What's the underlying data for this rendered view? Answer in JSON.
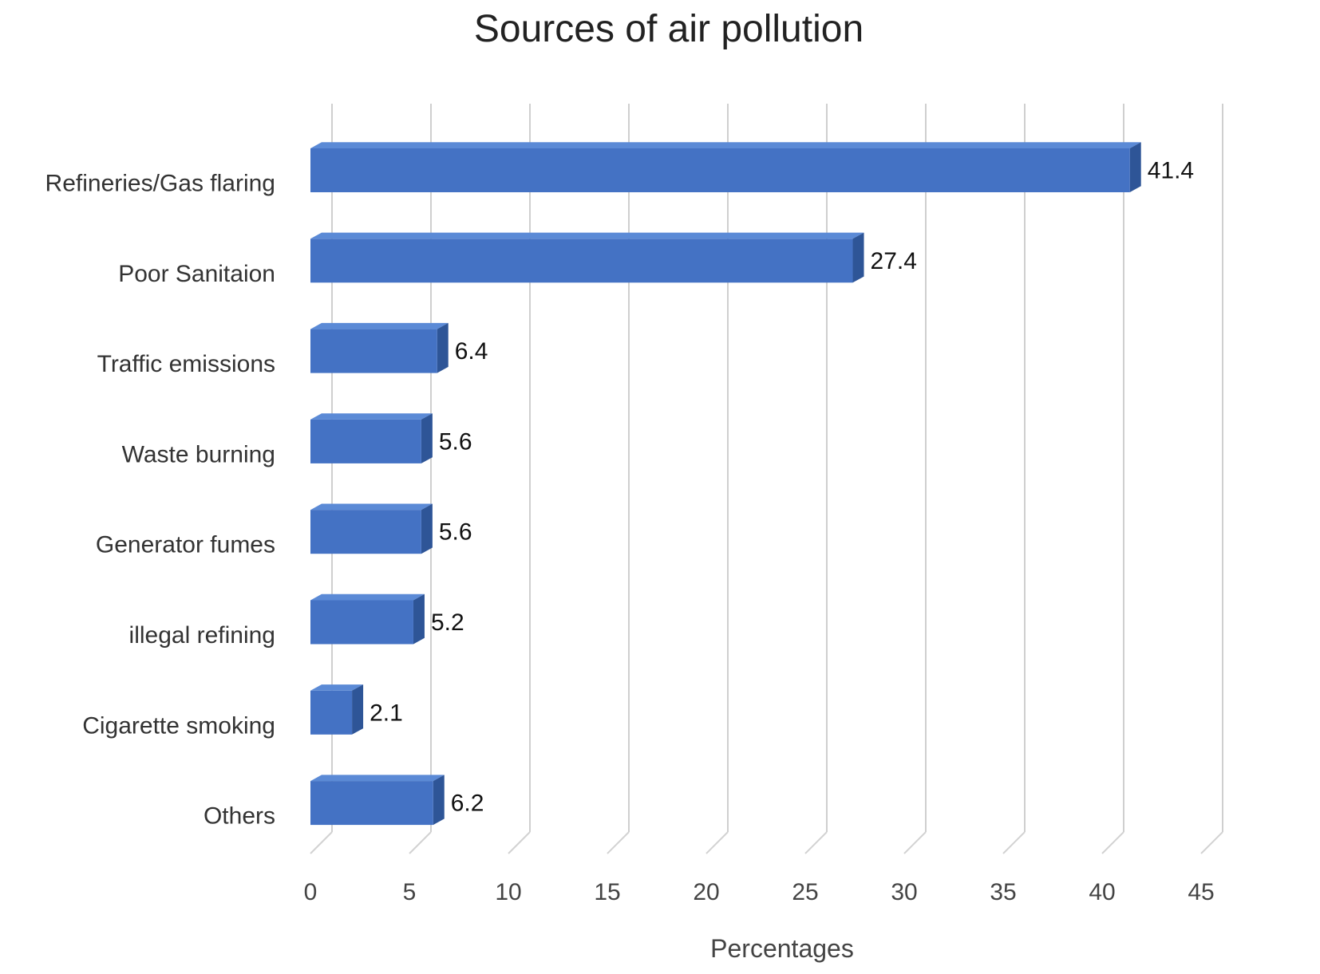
{
  "chart_data": {
    "type": "bar",
    "orientation": "horizontal",
    "style": "3d",
    "title": "Sources of air pollution",
    "xlabel": "Percentages",
    "ylabel": "",
    "categories": [
      "Refineries/Gas flaring",
      "Poor Sanitaion",
      "Traffic emissions",
      "Waste burning",
      "Generator fumes",
      "illegal refining",
      "Cigarette smoking",
      "Others"
    ],
    "values": [
      41.4,
      27.4,
      6.4,
      5.6,
      5.6,
      5.2,
      2.1,
      6.2
    ],
    "value_labels": [
      "41.4",
      "27.4",
      "6.4",
      "5.6",
      "5.6",
      "5.2",
      "2.1",
      "6.2"
    ],
    "xticks": [
      "0",
      "5",
      "10",
      "15",
      "20",
      "25",
      "30",
      "35",
      "40",
      "45"
    ],
    "xlim": [
      0,
      45
    ],
    "grid": true,
    "legend": "none",
    "colors": {
      "bar": "#4472c4",
      "bar_top": "#5b8ad6",
      "bar_side": "#2e5597"
    }
  }
}
